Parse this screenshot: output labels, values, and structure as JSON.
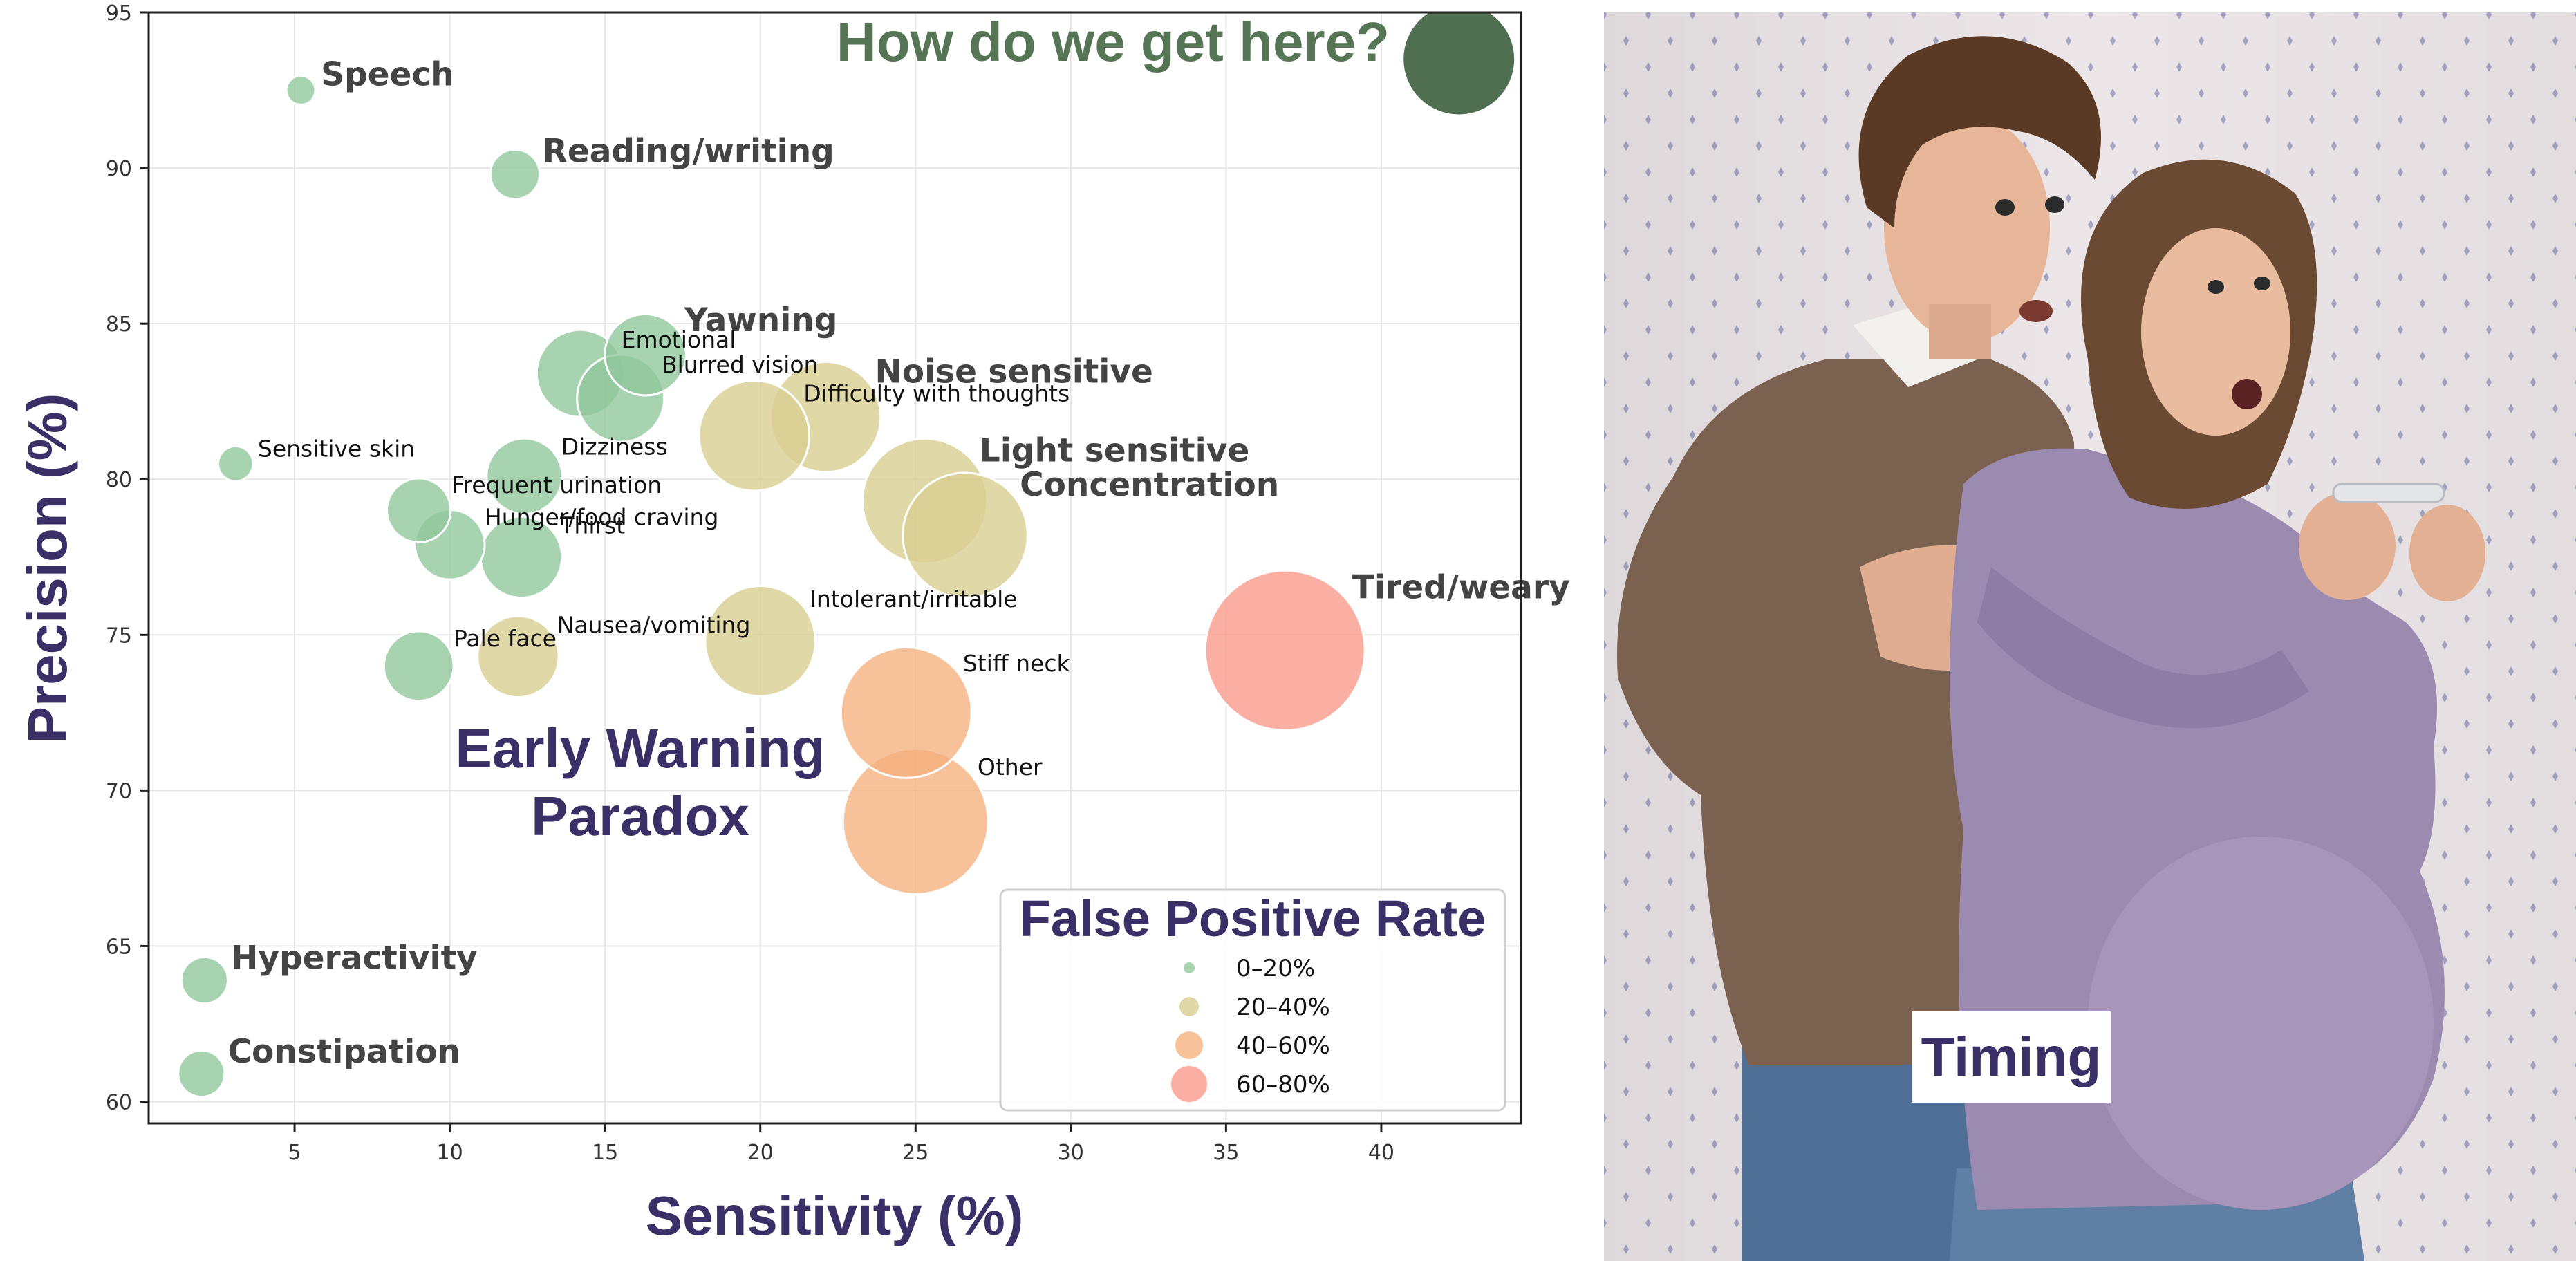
{
  "chart_data": {
    "type": "scatter",
    "title": "",
    "xlabel": "Sensitivity (%)",
    "ylabel": "Precision (%)",
    "xlim": [
      0.3,
      44.5
    ],
    "ylim": [
      59.3,
      95
    ],
    "xticks": [
      5,
      10,
      15,
      20,
      25,
      30,
      35,
      40
    ],
    "yticks": [
      60,
      65,
      70,
      75,
      80,
      85,
      90,
      95
    ],
    "grid": true,
    "legend": {
      "title": "False Positive Rate",
      "placement": "bottom-right",
      "entries": [
        {
          "label": "0–20%",
          "color": "#8fc79b"
        },
        {
          "label": "20–40%",
          "color": "#d8cd90"
        },
        {
          "label": "40–60%",
          "color": "#f5b07e"
        },
        {
          "label": "60–80%",
          "color": "#fa9888"
        }
      ]
    },
    "points": [
      {
        "label": "Speech",
        "x": 5.2,
        "y": 92.5,
        "fpr": "0–20%",
        "size": 1.0,
        "emphasis": true
      },
      {
        "label": "Reading/writing",
        "x": 12.1,
        "y": 89.8,
        "fpr": "0–20%",
        "size": 1.7,
        "emphasis": true
      },
      {
        "label": "Yawning",
        "x": 16.3,
        "y": 84.0,
        "fpr": "0–20%",
        "size": 2.8,
        "emphasis": true
      },
      {
        "label": "Emotional",
        "x": 14.2,
        "y": 83.4,
        "fpr": "0–20%",
        "size": 3.0,
        "emphasis": false
      },
      {
        "label": "Blurred vision",
        "x": 15.5,
        "y": 82.6,
        "fpr": "0–20%",
        "size": 3.0,
        "emphasis": false
      },
      {
        "label": "Noise sensitive",
        "x": 22.1,
        "y": 82.0,
        "fpr": "20–40%",
        "size": 3.8,
        "emphasis": true
      },
      {
        "label": "Difficulty with thoughts",
        "x": 19.8,
        "y": 81.4,
        "fpr": "20–40%",
        "size": 3.8,
        "emphasis": false
      },
      {
        "label": "Sensitive skin",
        "x": 3.1,
        "y": 80.5,
        "fpr": "0–20%",
        "size": 1.2,
        "emphasis": false
      },
      {
        "label": "Dizziness",
        "x": 12.4,
        "y": 80.1,
        "fpr": "0–20%",
        "size": 2.6,
        "emphasis": false
      },
      {
        "label": "Light sensitive",
        "x": 25.3,
        "y": 79.3,
        "fpr": "20–40%",
        "size": 4.3,
        "emphasis": true
      },
      {
        "label": "Concentration",
        "x": 26.6,
        "y": 78.2,
        "fpr": "20–40%",
        "size": 4.3,
        "emphasis": true
      },
      {
        "label": "Frequent urination",
        "x": 9.0,
        "y": 79.0,
        "fpr": "0–20%",
        "size": 2.2,
        "emphasis": false
      },
      {
        "label": "Hunger/food craving",
        "x": 10.0,
        "y": 77.9,
        "fpr": "0–20%",
        "size": 2.4,
        "emphasis": false
      },
      {
        "label": "Thirst",
        "x": 12.3,
        "y": 77.5,
        "fpr": "0–20%",
        "size": 2.8,
        "emphasis": false
      },
      {
        "label": "Pale face",
        "x": 9.0,
        "y": 74.0,
        "fpr": "0–20%",
        "size": 2.4,
        "emphasis": false
      },
      {
        "label": "Nausea/vomiting",
        "x": 12.2,
        "y": 74.3,
        "fpr": "20–40%",
        "size": 2.8,
        "emphasis": false
      },
      {
        "label": "Intolerant/irritable",
        "x": 20.0,
        "y": 74.8,
        "fpr": "20–40%",
        "size": 3.8,
        "emphasis": false
      },
      {
        "label": "Tired/weary",
        "x": 36.9,
        "y": 74.5,
        "fpr": "60–80%",
        "size": 5.5,
        "emphasis": true
      },
      {
        "label": "Stiff neck",
        "x": 24.7,
        "y": 72.5,
        "fpr": "40–60%",
        "size": 4.5,
        "emphasis": false
      },
      {
        "label": "Other",
        "x": 25.0,
        "y": 69.0,
        "fpr": "40–60%",
        "size": 5.0,
        "emphasis": false
      },
      {
        "label": "Hyperactivity",
        "x": 2.1,
        "y": 63.9,
        "fpr": "0–20%",
        "size": 1.6,
        "emphasis": true
      },
      {
        "label": "Constipation",
        "x": 2.0,
        "y": 60.9,
        "fpr": "0–20%",
        "size": 1.6,
        "emphasis": true
      }
    ],
    "target": {
      "label": "How do we get here?",
      "x": 42.5,
      "y": 93.5,
      "color": "#4f6f50",
      "label_color": "#557555"
    },
    "annotation": {
      "lines": [
        "Early Warning",
        "Paradox"
      ],
      "x": 15.0,
      "y": 71.2,
      "color": "#3a2f66"
    }
  },
  "photo": {
    "caption": "Timing",
    "colors": {
      "wallpaper": "#ece6e8",
      "wallpaper_dots": "#a6a6c4",
      "man_sweater": "#7b6150",
      "woman_top": "#9c8bb0",
      "jeans": "#4f6f96",
      "skin": "#e7b699",
      "hair_man": "#5a3a24",
      "hair_woman": "#6b4a33"
    }
  }
}
